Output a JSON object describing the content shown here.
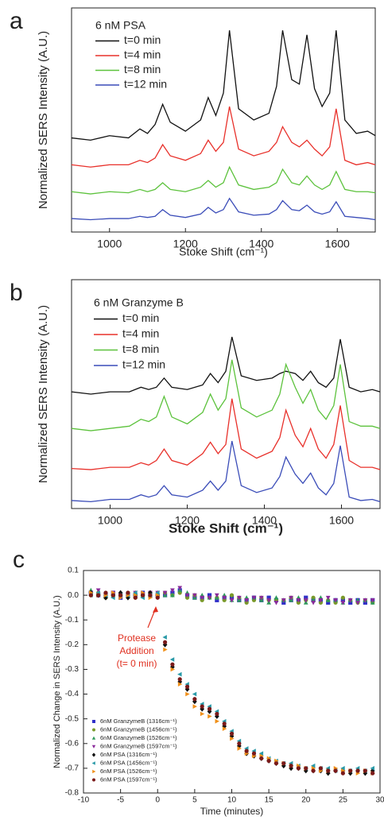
{
  "chart_data": [
    {
      "type": "line",
      "panel_label": "a",
      "legend_title": "6 nM PSA",
      "legend_position": "upper left",
      "xlabel": "Stoke Shift (cm⁻¹)",
      "ylabel": "Normalized SERS Intensity (A.U.)",
      "xlim": [
        900,
        1700
      ],
      "ylim": [
        0,
        10
      ],
      "xticks": [
        1000,
        1200,
        1400,
        1600
      ],
      "x": [
        900,
        950,
        1000,
        1050,
        1080,
        1100,
        1120,
        1140,
        1160,
        1200,
        1240,
        1260,
        1280,
        1300,
        1316,
        1340,
        1380,
        1420,
        1440,
        1456,
        1480,
        1500,
        1520,
        1540,
        1560,
        1580,
        1597,
        1620,
        1650,
        1680,
        1700
      ],
      "series": [
        {
          "name": "t=0 min",
          "color": "#111111",
          "values": [
            4.2,
            4.1,
            4.3,
            4.2,
            4.6,
            4.4,
            4.8,
            5.7,
            4.9,
            4.5,
            5.0,
            6.0,
            5.2,
            6.2,
            9.0,
            5.5,
            5.0,
            5.3,
            6.5,
            9.0,
            6.8,
            6.6,
            8.8,
            6.4,
            5.6,
            6.2,
            9.0,
            5.0,
            4.4,
            4.5,
            4.3
          ]
        },
        {
          "name": "t=4 min",
          "color": "#e8302a",
          "values": [
            3.0,
            2.9,
            3.0,
            3.0,
            3.2,
            3.1,
            3.3,
            3.9,
            3.4,
            3.2,
            3.5,
            4.1,
            3.6,
            4.0,
            5.6,
            3.7,
            3.4,
            3.6,
            4.0,
            4.7,
            4.0,
            3.8,
            4.1,
            3.7,
            3.4,
            3.8,
            5.5,
            3.2,
            3.0,
            3.1,
            3.0
          ]
        },
        {
          "name": "t=8 min",
          "color": "#5cc23c",
          "values": [
            1.8,
            1.7,
            1.8,
            1.75,
            1.9,
            1.8,
            1.9,
            2.2,
            1.9,
            1.8,
            2.0,
            2.3,
            2.0,
            2.2,
            2.9,
            2.1,
            1.9,
            2.0,
            2.2,
            2.8,
            2.2,
            2.1,
            2.5,
            2.1,
            1.9,
            2.1,
            2.7,
            1.9,
            1.8,
            1.8,
            1.75
          ]
        },
        {
          "name": "t=12 min",
          "color": "#3a4cb8",
          "values": [
            0.6,
            0.55,
            0.6,
            0.6,
            0.7,
            0.65,
            0.7,
            1.0,
            0.75,
            0.65,
            0.8,
            1.1,
            0.85,
            1.0,
            1.5,
            0.9,
            0.75,
            0.8,
            1.0,
            1.4,
            1.0,
            0.95,
            1.2,
            0.9,
            0.8,
            0.9,
            1.35,
            0.7,
            0.65,
            0.6,
            0.55
          ]
        }
      ]
    },
    {
      "type": "line",
      "panel_label": "b",
      "legend_title": "6 nM Granzyme B",
      "legend_position": "upper left",
      "xlabel": "Stoke Shift (cm⁻¹)",
      "ylabel": "Normalized SERS Intensity (A.U.)",
      "xlim": [
        900,
        1700
      ],
      "ylim": [
        0,
        10
      ],
      "xticks": [
        1000,
        1200,
        1400,
        1600
      ],
      "x": [
        900,
        950,
        1000,
        1050,
        1080,
        1100,
        1120,
        1140,
        1160,
        1200,
        1240,
        1260,
        1280,
        1300,
        1316,
        1340,
        1380,
        1420,
        1440,
        1456,
        1480,
        1500,
        1520,
        1540,
        1560,
        1580,
        1597,
        1620,
        1650,
        1680,
        1700
      ],
      "series": [
        {
          "name": "t=0 min",
          "color": "#111111",
          "values": [
            5.1,
            5.0,
            5.1,
            5.1,
            5.3,
            5.2,
            5.3,
            5.7,
            5.3,
            5.2,
            5.4,
            5.9,
            5.5,
            6.0,
            7.5,
            5.8,
            5.6,
            5.7,
            5.9,
            6.0,
            5.9,
            5.6,
            6.0,
            5.5,
            5.3,
            5.7,
            7.4,
            5.3,
            5.1,
            5.2,
            5.1
          ]
        },
        {
          "name": "t=4 min",
          "color": "#e8302a",
          "values": [
            1.75,
            1.7,
            1.8,
            1.8,
            2.0,
            1.9,
            2.1,
            2.6,
            2.1,
            1.9,
            2.4,
            2.9,
            2.4,
            2.8,
            4.8,
            2.6,
            2.2,
            2.5,
            3.1,
            4.3,
            3.2,
            2.7,
            3.5,
            2.6,
            2.2,
            2.8,
            4.5,
            2.1,
            1.8,
            1.8,
            1.7
          ]
        },
        {
          "name": "t=8 min",
          "color": "#5cc23c",
          "values": [
            3.5,
            3.4,
            3.5,
            3.6,
            3.9,
            3.8,
            4.0,
            4.9,
            4.0,
            3.7,
            4.2,
            5.0,
            4.3,
            4.8,
            6.5,
            4.4,
            4.0,
            4.3,
            5.0,
            6.3,
            5.3,
            4.6,
            5.2,
            4.3,
            3.9,
            4.5,
            6.3,
            3.8,
            3.6,
            3.6,
            3.5
          ]
        },
        {
          "name": "t=12 min",
          "color": "#3a4cb8",
          "values": [
            0.35,
            0.3,
            0.4,
            0.4,
            0.6,
            0.5,
            0.6,
            1.0,
            0.6,
            0.5,
            0.8,
            1.2,
            0.8,
            1.2,
            2.95,
            1.0,
            0.7,
            0.9,
            1.4,
            2.25,
            1.5,
            1.1,
            1.55,
            0.9,
            0.6,
            1.1,
            2.75,
            0.5,
            0.35,
            0.4,
            0.3
          ]
        }
      ]
    },
    {
      "type": "scatter",
      "panel_label": "c",
      "legend_position": "lower left",
      "xlabel": "Time (minutes)",
      "ylabel": "Normalized Change in SERS Intensity (A.U.)",
      "xlim": [
        -10,
        30
      ],
      "ylim": [
        -0.8,
        0.1
      ],
      "xticks": [
        -10,
        -5,
        0,
        5,
        10,
        15,
        20,
        25,
        30
      ],
      "yticks": [
        0.1,
        {
          "value": 0,
          "label": "0.0"
        },
        -0.1,
        -0.2,
        -0.3,
        -0.4,
        -0.5,
        -0.6,
        -0.7,
        -0.8
      ],
      "annotation": {
        "text": [
          "Protease",
          "Addition",
          "(t= 0 min)"
        ],
        "color": "#e03020"
      },
      "x": [
        -9,
        -8,
        -7,
        -6,
        -5,
        -4,
        -3,
        -2,
        -1,
        0,
        1,
        2,
        3,
        4,
        5,
        6,
        7,
        8,
        9,
        10,
        11,
        12,
        13,
        14,
        15,
        16,
        17,
        18,
        19,
        20,
        21,
        22,
        23,
        24,
        25,
        26,
        27,
        28,
        29
      ],
      "series": [
        {
          "name": "6nM GranzymeB (1316cm⁻¹)",
          "color": "#3030c8",
          "marker": "square",
          "values": [
            0.01,
            0.0,
            0.0,
            0.01,
            -0.01,
            0.0,
            0.0,
            0.01,
            0.0,
            0.0,
            0.0,
            0.01,
            0.02,
            0.0,
            -0.01,
            -0.01,
            0.0,
            -0.02,
            -0.01,
            -0.01,
            -0.02,
            -0.02,
            -0.01,
            -0.02,
            -0.01,
            -0.02,
            -0.03,
            -0.02,
            -0.02,
            -0.01,
            -0.02,
            -0.02,
            -0.03,
            -0.02,
            -0.02,
            -0.03,
            -0.02,
            -0.03,
            -0.02
          ]
        },
        {
          "name": "6nM GranzymeB (1456cm⁻¹)",
          "color": "#7a9a2a",
          "marker": "circle",
          "values": [
            0.0,
            0.01,
            -0.01,
            0.0,
            0.0,
            0.01,
            -0.01,
            0.0,
            0.01,
            0.0,
            0.01,
            0.0,
            0.01,
            -0.01,
            0.0,
            -0.02,
            -0.01,
            -0.01,
            -0.02,
            0.0,
            -0.01,
            -0.03,
            -0.02,
            -0.01,
            -0.02,
            -0.02,
            -0.02,
            -0.01,
            -0.03,
            -0.02,
            -0.01,
            -0.03,
            -0.02,
            -0.03,
            -0.01,
            -0.02,
            -0.03,
            -0.02,
            -0.03
          ]
        },
        {
          "name": "6nM GranzymeB (1526cm⁻¹)",
          "color": "#2e9a5a",
          "marker": "triangle-up",
          "values": [
            0.02,
            0.01,
            0.0,
            0.0,
            0.01,
            0.0,
            0.01,
            0.0,
            0.0,
            0.01,
            0.0,
            0.0,
            0.02,
            0.01,
            -0.01,
            0.0,
            -0.01,
            -0.01,
            0.0,
            -0.02,
            -0.02,
            -0.01,
            -0.01,
            -0.02,
            -0.03,
            -0.01,
            -0.02,
            -0.02,
            -0.01,
            -0.03,
            -0.02,
            -0.01,
            -0.02,
            -0.02,
            -0.03,
            -0.02,
            -0.02,
            -0.02,
            -0.03
          ]
        },
        {
          "name": "6nM GranzymeB (1597cm⁻¹)",
          "color": "#8a2a9a",
          "marker": "triangle-down",
          "values": [
            0.01,
            0.02,
            0.0,
            0.01,
            0.0,
            0.0,
            0.01,
            0.0,
            0.01,
            0.01,
            0.01,
            0.02,
            0.03,
            0.0,
            0.0,
            -0.01,
            -0.01,
            0.0,
            -0.01,
            -0.02,
            -0.01,
            -0.02,
            -0.01,
            -0.01,
            -0.02,
            -0.03,
            -0.02,
            -0.01,
            -0.02,
            -0.02,
            -0.03,
            -0.02,
            -0.01,
            -0.02,
            -0.03,
            -0.02,
            -0.03,
            -0.02,
            -0.02
          ]
        },
        {
          "name": "6nM PSA (1316cm⁻¹)",
          "color": "#111111",
          "marker": "diamond",
          "values": [
            0.01,
            0.0,
            -0.01,
            0.0,
            0.01,
            -0.01,
            0.0,
            0.0,
            0.01,
            0.0,
            -0.2,
            -0.29,
            -0.35,
            -0.38,
            -0.43,
            -0.46,
            -0.47,
            -0.49,
            -0.53,
            -0.57,
            -0.61,
            -0.64,
            -0.65,
            -0.66,
            -0.67,
            -0.68,
            -0.69,
            -0.7,
            -0.7,
            -0.71,
            -0.71,
            -0.71,
            -0.72,
            -0.71,
            -0.71,
            -0.72,
            -0.71,
            -0.72,
            -0.71
          ]
        },
        {
          "name": "6nM PSA (1456cm⁻¹)",
          "color": "#2a9aa8",
          "marker": "triangle-left",
          "values": [
            0.0,
            0.01,
            0.0,
            -0.01,
            0.0,
            0.0,
            0.01,
            -0.01,
            0.0,
            0.01,
            -0.17,
            -0.26,
            -0.32,
            -0.36,
            -0.4,
            -0.44,
            -0.45,
            -0.47,
            -0.51,
            -0.55,
            -0.59,
            -0.62,
            -0.63,
            -0.64,
            -0.66,
            -0.67,
            -0.68,
            -0.68,
            -0.69,
            -0.7,
            -0.69,
            -0.7,
            -0.7,
            -0.71,
            -0.7,
            -0.71,
            -0.7,
            -0.71,
            -0.7
          ]
        },
        {
          "name": "6nM PSA (1526cm⁻¹)",
          "color": "#f0901a",
          "marker": "triangle-right",
          "values": [
            0.01,
            0.0,
            0.0,
            0.01,
            -0.01,
            0.0,
            0.0,
            0.01,
            -0.01,
            0.0,
            -0.22,
            -0.3,
            -0.36,
            -0.4,
            -0.45,
            -0.48,
            -0.49,
            -0.51,
            -0.54,
            -0.58,
            -0.62,
            -0.64,
            -0.65,
            -0.65,
            -0.66,
            -0.67,
            -0.68,
            -0.69,
            -0.69,
            -0.7,
            -0.7,
            -0.71,
            -0.71,
            -0.7,
            -0.71,
            -0.71,
            -0.72,
            -0.71,
            -0.72
          ]
        },
        {
          "name": "6nM PSA (1597cm⁻¹)",
          "color": "#7a1a1a",
          "marker": "circle",
          "values": [
            0.0,
            0.0,
            0.01,
            0.0,
            0.0,
            0.01,
            -0.01,
            0.0,
            0.0,
            -0.01,
            -0.19,
            -0.28,
            -0.34,
            -0.37,
            -0.42,
            -0.45,
            -0.46,
            -0.48,
            -0.52,
            -0.56,
            -0.6,
            -0.63,
            -0.64,
            -0.66,
            -0.67,
            -0.68,
            -0.68,
            -0.69,
            -0.7,
            -0.7,
            -0.71,
            -0.7,
            -0.71,
            -0.71,
            -0.72,
            -0.71,
            -0.71,
            -0.71,
            -0.72
          ]
        }
      ]
    }
  ]
}
